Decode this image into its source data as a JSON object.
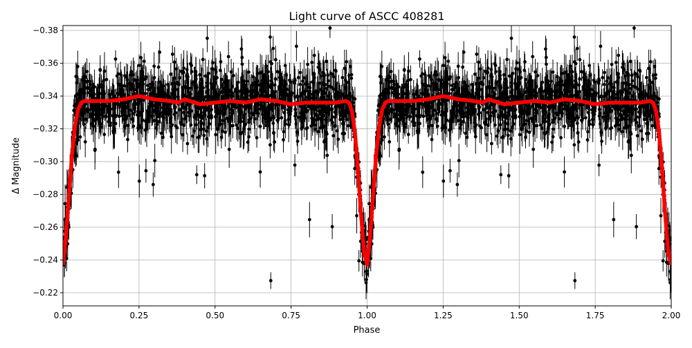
{
  "chart_data": {
    "type": "scatter",
    "title": "Light curve of ASCC 408281",
    "xlabel": "Phase",
    "ylabel": "Δ Magnitude",
    "xlim": [
      0,
      2
    ],
    "ylim": [
      -0.383,
      -0.212
    ],
    "y_inverted": true,
    "grid": true,
    "xticks": [
      0,
      0.25,
      0.5,
      0.75,
      1.0,
      1.25,
      1.5,
      1.75,
      2.0
    ],
    "xtick_labels": [
      "0.00",
      "0.25",
      "0.50",
      "0.75",
      "1.00",
      "1.25",
      "1.50",
      "1.75",
      "2.00"
    ],
    "yticks": [
      -0.38,
      -0.36,
      -0.34,
      -0.32,
      -0.3,
      -0.28,
      -0.26,
      -0.24,
      -0.22
    ],
    "ytick_labels": [
      "−0.38",
      "−0.36",
      "−0.34",
      "−0.32",
      "−0.30",
      "−0.28",
      "−0.26",
      "−0.24",
      "−0.22"
    ],
    "series": [
      {
        "kind": "data points with error bars",
        "color": "#000000",
        "scatter_std": 0.012,
        "errorbar_halfwidth": 0.008
      },
      {
        "kind": "model line",
        "color": "#ff0000",
        "phase": [
          0,
          0.01,
          0.02,
          0.03,
          0.04,
          0.05,
          0.06,
          0.07,
          0.1,
          0.15,
          0.2,
          0.25,
          0.3,
          0.35,
          0.38,
          0.4,
          0.45,
          0.5,
          0.55,
          0.6,
          0.65,
          0.7,
          0.75,
          0.8,
          0.85,
          0.9,
          0.93,
          0.94,
          0.95,
          0.96,
          0.97,
          0.98,
          0.99,
          1.0
        ],
        "values": [
          -0.237,
          -0.255,
          -0.28,
          -0.305,
          -0.322,
          -0.332,
          -0.336,
          -0.337,
          -0.337,
          -0.337,
          -0.338,
          -0.34,
          -0.338,
          -0.337,
          -0.336,
          -0.338,
          -0.335,
          -0.336,
          -0.337,
          -0.336,
          -0.338,
          -0.337,
          -0.335,
          -0.336,
          -0.336,
          -0.336,
          -0.337,
          -0.336,
          -0.331,
          -0.318,
          -0.295,
          -0.268,
          -0.245,
          -0.237
        ]
      }
    ]
  }
}
